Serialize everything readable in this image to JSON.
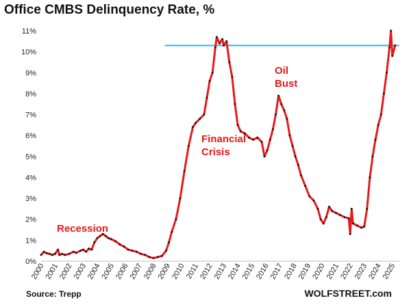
{
  "title": "Office CMBS Delinquency Rate, %",
  "source": "Source: Trepp",
  "brand": "WOLFSTREET.com",
  "colors": {
    "series": "#e8191b",
    "dots": "#111111",
    "reference": "#29b6e8",
    "annotation": "#e8191b"
  },
  "annotations": [
    "Recession",
    "Financial\nCrisis",
    "Oil\nBust"
  ],
  "chart_data": {
    "type": "line",
    "title": "Office CMBS Delinquency Rate, %",
    "xlabel": "",
    "ylabel": "",
    "ylim": [
      0,
      11
    ],
    "xlim": [
      2000,
      2025.5
    ],
    "yticks": [
      "0%",
      "1%",
      "2%",
      "3%",
      "4%",
      "5%",
      "6%",
      "7%",
      "8%",
      "9%",
      "10%",
      "11%"
    ],
    "xticks": [
      "2000",
      "2001",
      "2002",
      "2003",
      "2004",
      "2005",
      "2006",
      "2007",
      "2008",
      "2009",
      "2010",
      "2011",
      "2012",
      "2013",
      "2014",
      "2015",
      "2016",
      "2017",
      "2018",
      "2019",
      "2020",
      "2021",
      "2022",
      "2023",
      "2024",
      "2025"
    ],
    "reference_line": {
      "y": 10.3,
      "x_start": 2008.8,
      "x_end": 2025.5
    },
    "series": [
      {
        "points": [
          [
            2000.0,
            0.3
          ],
          [
            2000.2,
            0.45
          ],
          [
            2000.4,
            0.38
          ],
          [
            2000.6,
            0.35
          ],
          [
            2000.8,
            0.3
          ],
          [
            2001.0,
            0.35
          ],
          [
            2001.2,
            0.55
          ],
          [
            2001.3,
            0.3
          ],
          [
            2001.5,
            0.35
          ],
          [
            2001.7,
            0.3
          ],
          [
            2002.0,
            0.35
          ],
          [
            2002.3,
            0.45
          ],
          [
            2002.5,
            0.4
          ],
          [
            2002.8,
            0.5
          ],
          [
            2003.0,
            0.55
          ],
          [
            2003.2,
            0.45
          ],
          [
            2003.4,
            0.6
          ],
          [
            2003.6,
            0.55
          ],
          [
            2003.8,
            0.9
          ],
          [
            2004.0,
            1.1
          ],
          [
            2004.2,
            1.2
          ],
          [
            2004.4,
            1.3
          ],
          [
            2004.6,
            1.2
          ],
          [
            2004.8,
            1.1
          ],
          [
            2005.0,
            1.05
          ],
          [
            2005.3,
            0.95
          ],
          [
            2005.6,
            0.8
          ],
          [
            2005.9,
            0.7
          ],
          [
            2006.2,
            0.55
          ],
          [
            2006.5,
            0.5
          ],
          [
            2006.8,
            0.45
          ],
          [
            2007.1,
            0.35
          ],
          [
            2007.4,
            0.3
          ],
          [
            2007.7,
            0.2
          ],
          [
            2008.0,
            0.15
          ],
          [
            2008.3,
            0.2
          ],
          [
            2008.6,
            0.25
          ],
          [
            2008.9,
            0.5
          ],
          [
            2009.1,
            0.9
          ],
          [
            2009.3,
            1.4
          ],
          [
            2009.6,
            2.0
          ],
          [
            2009.9,
            3.0
          ],
          [
            2010.2,
            4.3
          ],
          [
            2010.5,
            5.5
          ],
          [
            2010.8,
            6.4
          ],
          [
            2011.0,
            6.6
          ],
          [
            2011.3,
            6.8
          ],
          [
            2011.6,
            7.0
          ],
          [
            2011.8,
            7.8
          ],
          [
            2012.0,
            8.6
          ],
          [
            2012.2,
            9.0
          ],
          [
            2012.4,
            10.2
          ],
          [
            2012.5,
            10.7
          ],
          [
            2012.7,
            10.4
          ],
          [
            2012.9,
            10.6
          ],
          [
            2013.0,
            10.3
          ],
          [
            2013.2,
            10.5
          ],
          [
            2013.4,
            9.5
          ],
          [
            2013.6,
            8.8
          ],
          [
            2013.8,
            7.5
          ],
          [
            2014.0,
            6.5
          ],
          [
            2014.2,
            6.2
          ],
          [
            2014.5,
            6.1
          ],
          [
            2014.8,
            5.9
          ],
          [
            2015.1,
            5.8
          ],
          [
            2015.4,
            5.9
          ],
          [
            2015.7,
            5.7
          ],
          [
            2015.9,
            5.0
          ],
          [
            2016.1,
            5.3
          ],
          [
            2016.3,
            5.8
          ],
          [
            2016.5,
            6.3
          ],
          [
            2016.7,
            7.0
          ],
          [
            2016.9,
            7.9
          ],
          [
            2017.1,
            7.5
          ],
          [
            2017.3,
            7.2
          ],
          [
            2017.5,
            6.8
          ],
          [
            2017.7,
            6.0
          ],
          [
            2017.9,
            5.5
          ],
          [
            2018.1,
            5.0
          ],
          [
            2018.3,
            4.6
          ],
          [
            2018.5,
            4.1
          ],
          [
            2018.8,
            3.6
          ],
          [
            2019.1,
            3.1
          ],
          [
            2019.4,
            2.9
          ],
          [
            2019.7,
            2.5
          ],
          [
            2019.9,
            2.0
          ],
          [
            2020.1,
            1.8
          ],
          [
            2020.3,
            2.1
          ],
          [
            2020.5,
            2.6
          ],
          [
            2020.7,
            2.4
          ],
          [
            2021.0,
            2.3
          ],
          [
            2021.3,
            2.2
          ],
          [
            2021.6,
            2.1
          ],
          [
            2021.9,
            2.05
          ],
          [
            2022.0,
            1.3
          ],
          [
            2022.1,
            2.5
          ],
          [
            2022.2,
            1.8
          ],
          [
            2022.5,
            1.7
          ],
          [
            2022.8,
            1.6
          ],
          [
            2023.0,
            1.65
          ],
          [
            2023.2,
            2.5
          ],
          [
            2023.4,
            4.0
          ],
          [
            2023.6,
            5.0
          ],
          [
            2023.8,
            5.8
          ],
          [
            2024.0,
            6.5
          ],
          [
            2024.2,
            7.0
          ],
          [
            2024.4,
            8.0
          ],
          [
            2024.6,
            9.0
          ],
          [
            2024.8,
            10.2
          ],
          [
            2024.9,
            11.0
          ],
          [
            2025.0,
            9.8
          ],
          [
            2025.2,
            10.3
          ]
        ]
      }
    ]
  }
}
